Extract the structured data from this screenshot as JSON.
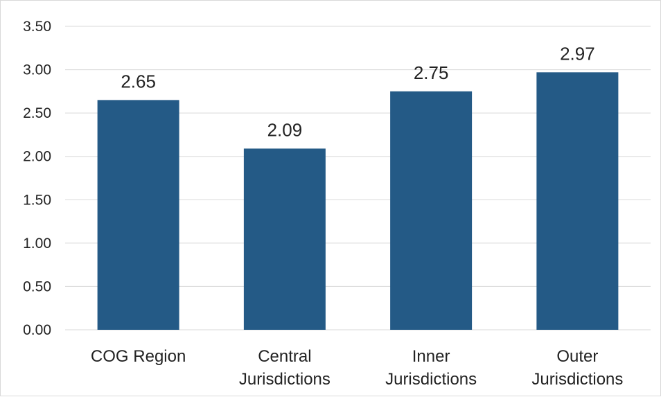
{
  "chart_data": {
    "type": "bar",
    "categories": [
      [
        "COG Region"
      ],
      [
        "Central",
        "Jurisdictions"
      ],
      [
        "Inner",
        "Jurisdictions"
      ],
      [
        "Outer",
        "Jurisdictions"
      ]
    ],
    "values": [
      2.65,
      2.09,
      2.75,
      2.97
    ],
    "data_labels": [
      "2.65",
      "2.09",
      "2.75",
      "2.97"
    ],
    "y_ticks": [
      "0.00",
      "0.50",
      "1.00",
      "1.50",
      "2.00",
      "2.50",
      "3.00",
      "3.50"
    ],
    "ylim": [
      0,
      3.5
    ],
    "grid": true,
    "bar_color": "#245A86",
    "title": "",
    "xlabel": "",
    "ylabel": ""
  }
}
